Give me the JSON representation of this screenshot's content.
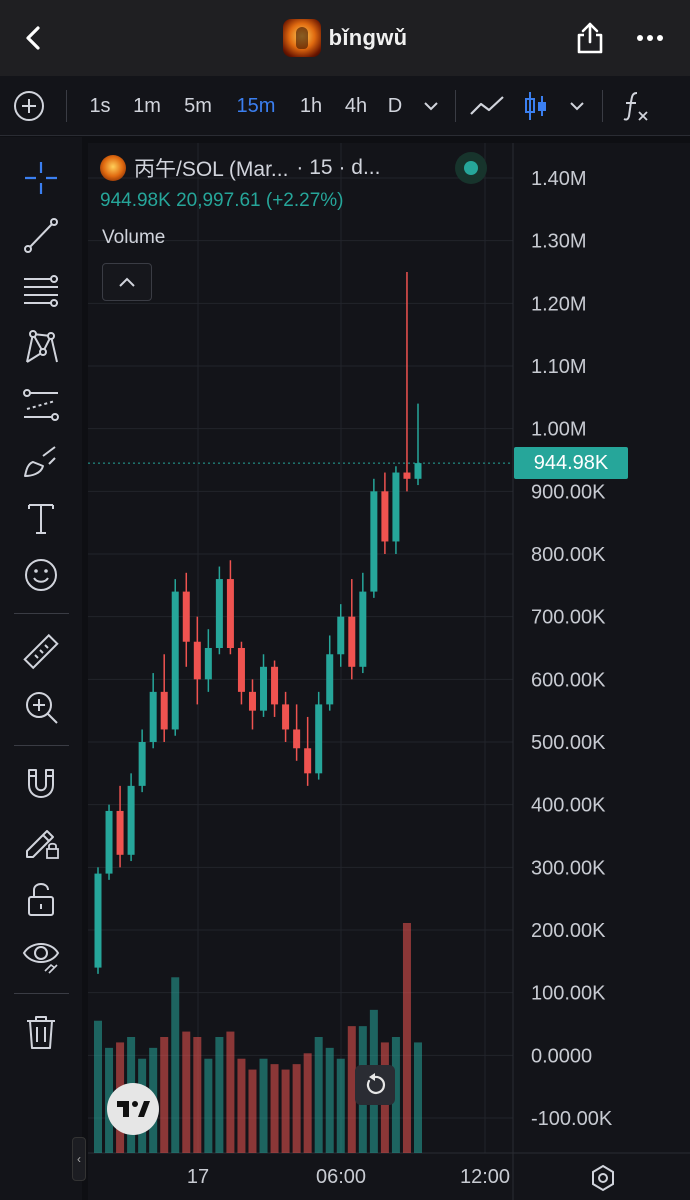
{
  "header": {
    "title": "bǐngwǔ",
    "back_icon": "chevron-left-icon",
    "share_icon": "share-icon",
    "more_icon": "more-horizontal-icon"
  },
  "toolbar": {
    "add_icon": "plus-circle-icon",
    "intervals": [
      {
        "label": "1s",
        "active": false
      },
      {
        "label": "1m",
        "active": false
      },
      {
        "label": "5m",
        "active": false
      },
      {
        "label": "15m",
        "active": true
      },
      {
        "label": "1h",
        "active": false
      },
      {
        "label": "4h",
        "active": false
      },
      {
        "label": "D",
        "active": false
      }
    ],
    "interval_dropdown_icon": "chevron-down-icon",
    "line_chart_icon": "line-chart-icon",
    "candles_icon": "candlestick-icon",
    "chart_type_dropdown_icon": "chevron-down-icon",
    "indicators_icon": "fx-icon"
  },
  "left_toolbar": {
    "tools": [
      "crosshair-icon",
      "trend-line-icon",
      "fib-lines-icon",
      "pattern-icon",
      "prediction-icon",
      "brush-icon",
      "text-icon",
      "emoji-icon",
      "ruler-icon",
      "zoom-in-icon",
      "magnet-icon",
      "lock-drawing-icon",
      "unlock-icon",
      "eye-icon",
      "trash-icon"
    ],
    "collapse_label": "‹"
  },
  "legend": {
    "symbol": "丙午/SOL (Mar...",
    "interval": "· 15 · d...",
    "last_price": "944.98K",
    "change": "20,997.61 (+2.27%)",
    "volume_label": "Volume",
    "status_color": "#26a69a"
  },
  "price_axis": {
    "labels": [
      "1.40M",
      "1.30M",
      "1.20M",
      "1.10M",
      "1.00M",
      "900.00K",
      "800.00K",
      "700.00K",
      "600.00K",
      "500.00K",
      "400.00K",
      "300.00K",
      "200.00K",
      "100.00K",
      "0.0000",
      "-100.00K"
    ],
    "current_price_label": "944.98K"
  },
  "time_axis": {
    "labels": [
      "17",
      "06:00",
      "12:00"
    ]
  },
  "colors": {
    "up": "#26a69a",
    "down": "#ef5350",
    "accent": "#3b7ff0"
  },
  "chart_data": {
    "type": "candlestick",
    "interval": "15m",
    "y_unit": "market cap",
    "candles_ohlc_approx": [
      [
        140000,
        300000,
        130000,
        290000
      ],
      [
        290000,
        400000,
        280000,
        390000
      ],
      [
        390000,
        430000,
        300000,
        320000
      ],
      [
        320000,
        450000,
        310000,
        430000
      ],
      [
        430000,
        520000,
        420000,
        500000
      ],
      [
        500000,
        610000,
        490000,
        580000
      ],
      [
        580000,
        640000,
        500000,
        520000
      ],
      [
        520000,
        760000,
        510000,
        740000
      ],
      [
        740000,
        770000,
        620000,
        660000
      ],
      [
        660000,
        700000,
        560000,
        600000
      ],
      [
        600000,
        680000,
        580000,
        650000
      ],
      [
        650000,
        780000,
        640000,
        760000
      ],
      [
        760000,
        790000,
        640000,
        650000
      ],
      [
        650000,
        660000,
        560000,
        580000
      ],
      [
        580000,
        600000,
        520000,
        550000
      ],
      [
        550000,
        640000,
        540000,
        620000
      ],
      [
        620000,
        630000,
        540000,
        560000
      ],
      [
        560000,
        580000,
        500000,
        520000
      ],
      [
        520000,
        560000,
        470000,
        490000
      ],
      [
        490000,
        540000,
        430000,
        450000
      ],
      [
        450000,
        580000,
        440000,
        560000
      ],
      [
        560000,
        670000,
        550000,
        640000
      ],
      [
        640000,
        720000,
        620000,
        700000
      ],
      [
        700000,
        760000,
        600000,
        620000
      ],
      [
        620000,
        770000,
        610000,
        740000
      ],
      [
        740000,
        920000,
        730000,
        900000
      ],
      [
        900000,
        930000,
        800000,
        820000
      ],
      [
        820000,
        940000,
        800000,
        930000
      ],
      [
        930000,
        1250000,
        900000,
        920000
      ],
      [
        920000,
        1040000,
        910000,
        945000
      ]
    ],
    "volume_peak_label": "",
    "last_price": 944980,
    "ylim": [
      -100000,
      1400000
    ]
  }
}
